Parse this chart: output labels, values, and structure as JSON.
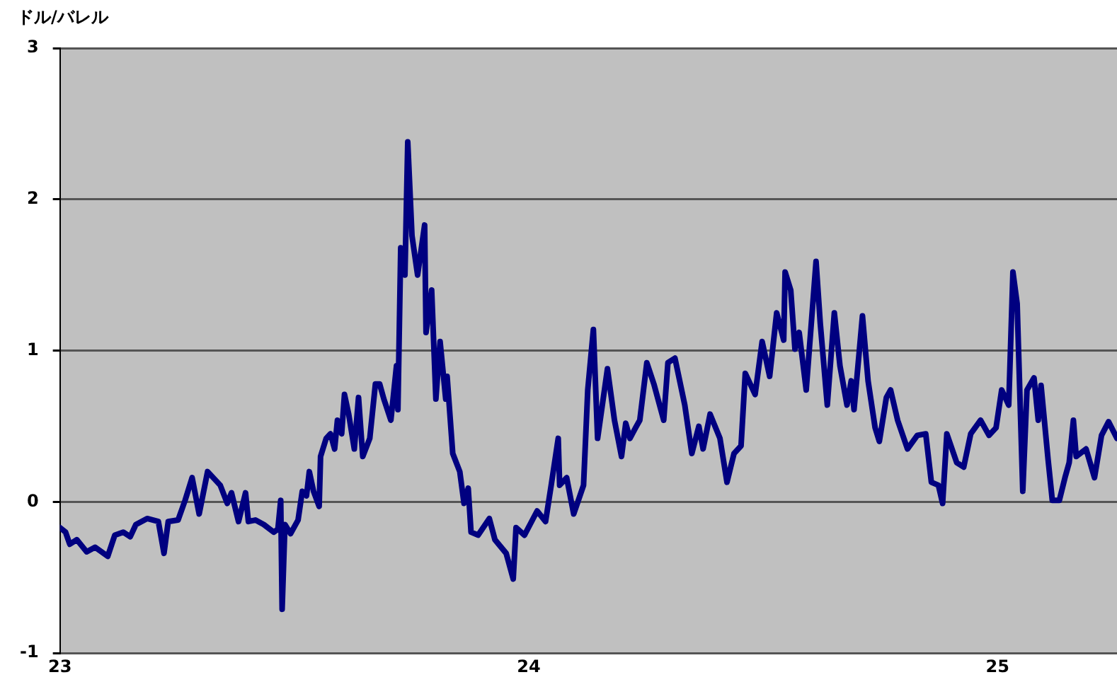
{
  "chart_data": {
    "type": "line",
    "ylabel": "ドル/バレル",
    "xlim": [
      23,
      25.255
    ],
    "xticks": [
      23,
      24,
      25
    ],
    "ylim": [
      -1,
      3
    ],
    "yticks": [
      -1,
      0,
      1,
      2,
      3
    ],
    "grid": "y",
    "legend": false,
    "marker": "none",
    "line_style": "solid",
    "x": [
      23.0,
      23.012,
      23.021,
      23.036,
      23.057,
      23.075,
      23.102,
      23.117,
      23.135,
      23.15,
      23.162,
      23.186,
      23.21,
      23.222,
      23.231,
      23.252,
      23.267,
      23.282,
      23.297,
      23.315,
      23.342,
      23.357,
      23.366,
      23.381,
      23.396,
      23.402,
      23.417,
      23.435,
      23.456,
      23.465,
      23.471,
      23.474,
      23.48,
      23.492,
      23.508,
      23.517,
      23.526,
      23.532,
      23.541,
      23.553,
      23.556,
      23.568,
      23.577,
      23.586,
      23.592,
      23.601,
      23.607,
      23.616,
      23.628,
      23.637,
      23.646,
      23.661,
      23.673,
      23.682,
      23.691,
      23.706,
      23.718,
      23.721,
      23.727,
      23.736,
      23.742,
      23.751,
      23.763,
      23.778,
      23.781,
      23.793,
      23.802,
      23.811,
      23.823,
      23.826,
      23.838,
      23.853,
      23.862,
      23.871,
      23.877,
      23.892,
      23.916,
      23.928,
      23.952,
      23.967,
      23.973,
      23.991,
      24.018,
      24.036,
      24.048,
      24.063,
      24.066,
      24.081,
      24.096,
      24.117,
      24.126,
      24.138,
      24.147,
      24.168,
      24.183,
      24.198,
      24.207,
      24.216,
      24.228,
      24.237,
      24.252,
      24.267,
      24.288,
      24.297,
      24.312,
      24.333,
      24.348,
      24.363,
      24.372,
      24.387,
      24.408,
      24.423,
      24.438,
      24.453,
      24.462,
      24.483,
      24.498,
      24.514,
      24.529,
      24.544,
      24.547,
      24.559,
      24.568,
      24.577,
      24.592,
      24.613,
      24.622,
      24.637,
      24.652,
      24.664,
      24.679,
      24.688,
      24.694,
      24.712,
      24.724,
      24.739,
      24.748,
      24.763,
      24.772,
      24.787,
      24.808,
      24.829,
      24.847,
      24.859,
      24.874,
      24.883,
      24.892,
      24.913,
      24.928,
      24.943,
      24.964,
      24.982,
      24.997,
      25.009,
      25.024,
      25.033,
      25.042,
      25.054,
      25.063,
      25.078,
      25.087,
      25.093,
      25.108,
      25.117,
      25.132,
      25.144,
      25.153,
      25.162,
      25.168,
      25.189,
      25.207,
      25.222,
      25.237,
      25.255
    ],
    "series": [
      {
        "color": "#000080",
        "values": [
          -0.17,
          -0.2,
          -0.28,
          -0.25,
          -0.33,
          -0.3,
          -0.36,
          -0.22,
          -0.2,
          -0.23,
          -0.15,
          -0.11,
          -0.13,
          -0.34,
          -0.13,
          -0.12,
          0.01,
          0.16,
          -0.08,
          0.2,
          0.11,
          -0.01,
          0.06,
          -0.13,
          0.06,
          -0.13,
          -0.12,
          -0.15,
          -0.2,
          -0.18,
          0.01,
          -0.71,
          -0.15,
          -0.21,
          -0.12,
          0.07,
          0.04,
          0.2,
          0.07,
          -0.03,
          0.3,
          0.42,
          0.45,
          0.35,
          0.54,
          0.45,
          0.71,
          0.58,
          0.35,
          0.69,
          0.3,
          0.42,
          0.78,
          0.78,
          0.68,
          0.54,
          0.9,
          0.61,
          1.68,
          1.5,
          2.38,
          1.76,
          1.5,
          1.83,
          1.12,
          1.4,
          0.68,
          1.06,
          0.68,
          0.83,
          0.32,
          0.2,
          -0.01,
          0.09,
          -0.2,
          -0.22,
          -0.11,
          -0.25,
          -0.34,
          -0.51,
          -0.17,
          -0.22,
          -0.06,
          -0.13,
          0.11,
          0.42,
          0.11,
          0.16,
          -0.08,
          0.11,
          0.74,
          1.14,
          0.42,
          0.88,
          0.54,
          0.3,
          0.52,
          0.42,
          0.49,
          0.54,
          0.92,
          0.78,
          0.54,
          0.92,
          0.95,
          0.64,
          0.32,
          0.5,
          0.35,
          0.58,
          0.42,
          0.13,
          0.32,
          0.37,
          0.85,
          0.71,
          1.06,
          0.83,
          1.25,
          1.07,
          1.52,
          1.4,
          1.01,
          1.12,
          0.74,
          1.59,
          1.18,
          0.64,
          1.25,
          0.9,
          0.64,
          0.8,
          0.61,
          1.23,
          0.8,
          0.49,
          0.4,
          0.69,
          0.74,
          0.54,
          0.35,
          0.44,
          0.45,
          0.13,
          0.11,
          -0.01,
          0.45,
          0.26,
          0.23,
          0.45,
          0.54,
          0.44,
          0.49,
          0.74,
          0.64,
          1.52,
          1.31,
          0.07,
          0.74,
          0.82,
          0.54,
          0.77,
          0.28,
          0.01,
          0.01,
          0.16,
          0.26,
          0.54,
          0.3,
          0.35,
          0.16,
          0.44,
          0.53,
          0.42
        ]
      }
    ]
  }
}
